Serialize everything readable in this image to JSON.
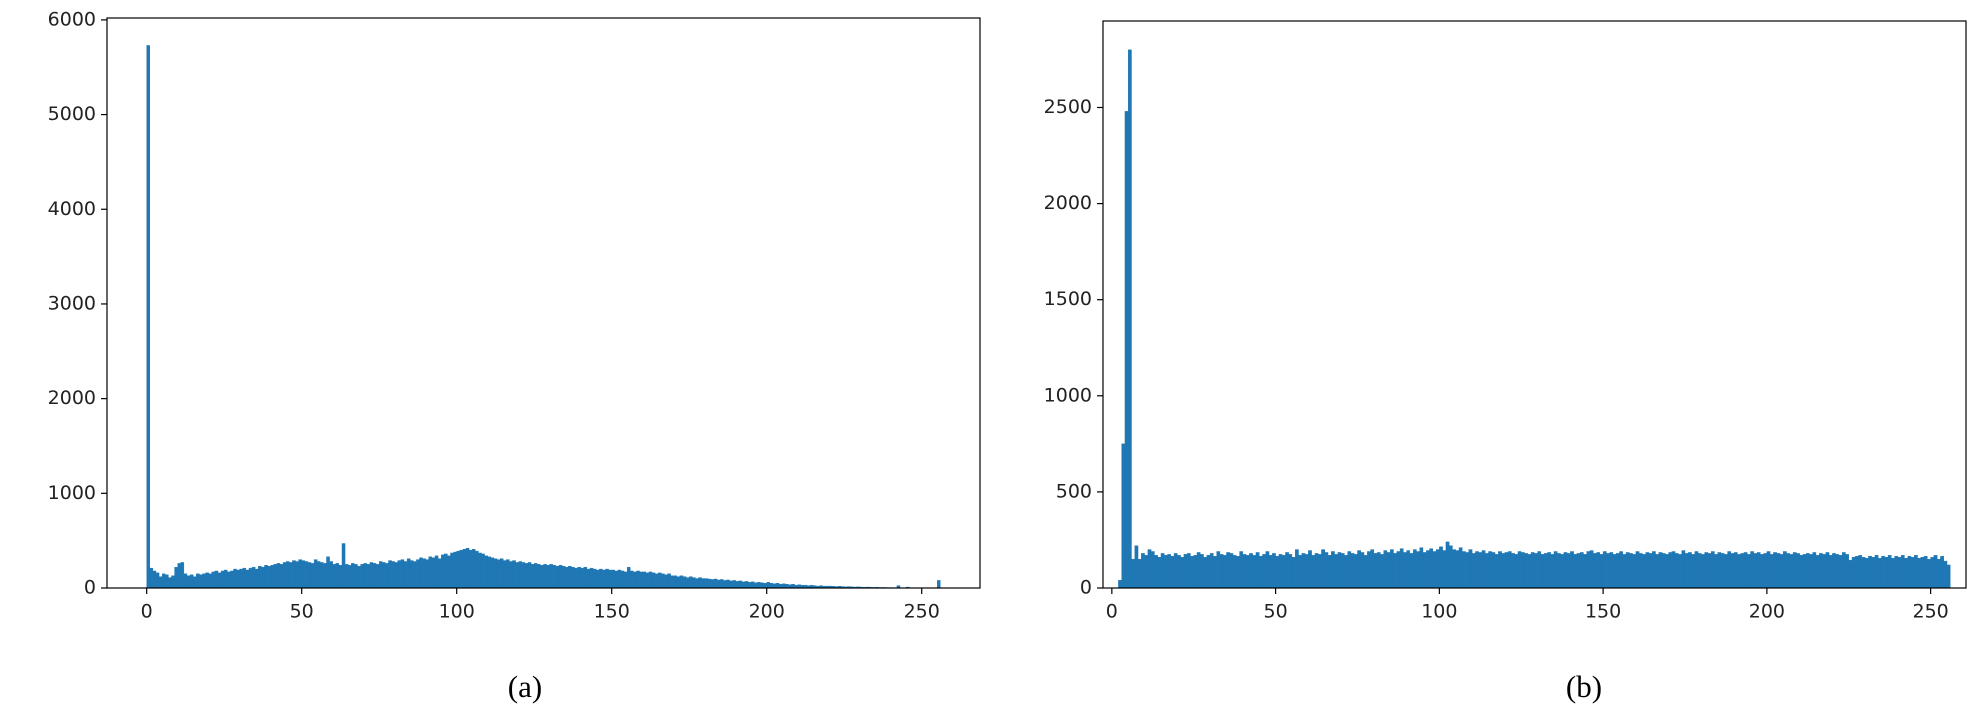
{
  "chart_data": [
    {
      "type": "histogram",
      "caption": "(a)",
      "color": "#1f77b4",
      "bins": [
        0,
        1,
        2,
        3,
        4,
        5,
        6,
        7,
        8,
        9,
        10,
        11,
        12,
        13,
        14,
        15,
        16,
        17,
        18,
        19,
        20,
        21,
        22,
        23,
        24,
        25,
        26,
        27,
        28,
        29,
        30,
        31,
        32,
        33,
        34,
        35,
        36,
        37,
        38,
        39,
        40,
        41,
        42,
        43,
        44,
        45,
        46,
        47,
        48,
        49,
        50,
        51,
        52,
        53,
        54,
        55,
        56,
        57,
        58,
        59,
        60,
        61,
        62,
        63,
        64,
        65,
        66,
        67,
        68,
        69,
        70,
        71,
        72,
        73,
        74,
        75,
        76,
        77,
        78,
        79,
        80,
        81,
        82,
        83,
        84,
        85,
        86,
        87,
        88,
        89,
        90,
        91,
        92,
        93,
        94,
        95,
        96,
        97,
        98,
        99,
        100,
        101,
        102,
        103,
        104,
        105,
        106,
        107,
        108,
        109,
        110,
        111,
        112,
        113,
        114,
        115,
        116,
        117,
        118,
        119,
        120,
        121,
        122,
        123,
        124,
        125,
        126,
        127,
        128,
        129,
        130,
        131,
        132,
        133,
        134,
        135,
        136,
        137,
        138,
        139,
        140,
        141,
        142,
        143,
        144,
        145,
        146,
        147,
        148,
        149,
        150,
        151,
        152,
        153,
        154,
        155,
        156,
        157,
        158,
        159,
        160,
        161,
        162,
        163,
        164,
        165,
        166,
        167,
        168,
        169,
        170,
        171,
        172,
        173,
        174,
        175,
        176,
        177,
        178,
        179,
        180,
        181,
        182,
        183,
        184,
        185,
        186,
        187,
        188,
        189,
        190,
        191,
        192,
        193,
        194,
        195,
        196,
        197,
        198,
        199,
        200,
        201,
        202,
        203,
        204,
        205,
        206,
        207,
        208,
        209,
        210,
        211,
        212,
        213,
        214,
        215,
        216,
        217,
        218,
        219,
        220,
        221,
        222,
        223,
        224,
        225,
        226,
        227,
        228,
        229,
        230,
        231,
        232,
        233,
        234,
        235,
        236,
        237,
        238,
        239,
        240,
        241,
        242,
        243,
        244,
        245,
        246,
        247,
        248,
        249,
        250,
        251,
        252,
        253,
        254,
        255,
        256
      ],
      "values": [
        5730,
        210,
        180,
        160,
        120,
        150,
        140,
        110,
        130,
        220,
        260,
        270,
        150,
        130,
        140,
        120,
        150,
        140,
        150,
        160,
        150,
        170,
        180,
        160,
        180,
        190,
        170,
        180,
        200,
        190,
        200,
        210,
        190,
        210,
        220,
        200,
        230,
        220,
        240,
        230,
        240,
        250,
        260,
        250,
        270,
        280,
        270,
        290,
        280,
        300,
        290,
        280,
        270,
        260,
        300,
        280,
        270,
        260,
        330,
        280,
        250,
        260,
        240,
        470,
        250,
        240,
        260,
        250,
        230,
        250,
        260,
        250,
        270,
        260,
        250,
        280,
        270,
        260,
        290,
        280,
        270,
        290,
        300,
        280,
        310,
        290,
        280,
        300,
        320,
        310,
        300,
        330,
        320,
        340,
        310,
        350,
        360,
        340,
        370,
        380,
        390,
        400,
        410,
        420,
        400,
        410,
        390,
        370,
        360,
        340,
        330,
        320,
        310,
        300,
        310,
        290,
        300,
        280,
        290,
        270,
        280,
        270,
        260,
        270,
        250,
        260,
        250,
        240,
        250,
        240,
        250,
        240,
        230,
        240,
        230,
        220,
        230,
        220,
        210,
        220,
        210,
        220,
        200,
        210,
        200,
        190,
        200,
        190,
        200,
        190,
        190,
        180,
        190,
        180,
        170,
        220,
        180,
        170,
        180,
        170,
        170,
        160,
        170,
        160,
        150,
        160,
        150,
        140,
        150,
        130,
        130,
        120,
        130,
        120,
        110,
        120,
        110,
        100,
        110,
        100,
        100,
        95,
        90,
        95,
        85,
        90,
        80,
        85,
        75,
        80,
        70,
        75,
        65,
        70,
        60,
        65,
        55,
        60,
        55,
        50,
        60,
        50,
        45,
        50,
        40,
        45,
        40,
        35,
        40,
        30,
        35,
        30,
        30,
        25,
        30,
        25,
        20,
        25,
        20,
        20,
        20,
        18,
        15,
        18,
        15,
        12,
        15,
        12,
        10,
        12,
        10,
        8,
        10,
        8,
        6,
        8,
        5,
        6,
        5,
        4,
        4,
        3,
        25,
        3,
        2,
        10,
        2,
        1,
        1,
        1,
        0,
        0,
        0,
        0,
        0,
        80
      ],
      "xlim": [
        -12.8,
        268.8
      ],
      "xticks": [
        0,
        50,
        100,
        150,
        200,
        250
      ],
      "ylim": [
        0,
        6020
      ],
      "yticks": [
        0,
        1000,
        2000,
        3000,
        4000,
        5000,
        6000
      ]
    },
    {
      "type": "histogram",
      "caption": "(b)",
      "color": "#1f77b4",
      "bins": [
        2,
        3,
        4,
        5,
        6,
        7,
        8,
        9,
        10,
        11,
        12,
        13,
        14,
        15,
        16,
        17,
        18,
        19,
        20,
        21,
        22,
        23,
        24,
        25,
        26,
        27,
        28,
        29,
        30,
        31,
        32,
        33,
        34,
        35,
        36,
        37,
        38,
        39,
        40,
        41,
        42,
        43,
        44,
        45,
        46,
        47,
        48,
        49,
        50,
        51,
        52,
        53,
        54,
        55,
        56,
        57,
        58,
        59,
        60,
        61,
        62,
        63,
        64,
        65,
        66,
        67,
        68,
        69,
        70,
        71,
        72,
        73,
        74,
        75,
        76,
        77,
        78,
        79,
        80,
        81,
        82,
        83,
        84,
        85,
        86,
        87,
        88,
        89,
        90,
        91,
        92,
        93,
        94,
        95,
        96,
        97,
        98,
        99,
        100,
        101,
        102,
        103,
        104,
        105,
        106,
        107,
        108,
        109,
        110,
        111,
        112,
        113,
        114,
        115,
        116,
        117,
        118,
        119,
        120,
        121,
        122,
        123,
        124,
        125,
        126,
        127,
        128,
        129,
        130,
        131,
        132,
        133,
        134,
        135,
        136,
        137,
        138,
        139,
        140,
        141,
        142,
        143,
        144,
        145,
        146,
        147,
        148,
        149,
        150,
        151,
        152,
        153,
        154,
        155,
        156,
        157,
        158,
        159,
        160,
        161,
        162,
        163,
        164,
        165,
        166,
        167,
        168,
        169,
        170,
        171,
        172,
        173,
        174,
        175,
        176,
        177,
        178,
        179,
        180,
        181,
        182,
        183,
        184,
        185,
        186,
        187,
        188,
        189,
        190,
        191,
        192,
        193,
        194,
        195,
        196,
        197,
        198,
        199,
        200,
        201,
        202,
        203,
        204,
        205,
        206,
        207,
        208,
        209,
        210,
        211,
        212,
        213,
        214,
        215,
        216,
        217,
        218,
        219,
        220,
        221,
        222,
        223,
        224,
        225,
        226,
        227,
        228,
        229,
        230,
        231,
        232,
        233,
        234,
        235,
        236,
        237,
        238,
        239,
        240,
        241,
        242,
        243,
        244,
        245,
        246,
        247,
        248,
        249,
        250,
        251,
        252,
        253,
        254,
        255,
        256
      ],
      "values": [
        40,
        750,
        2480,
        2800,
        150,
        220,
        150,
        180,
        170,
        200,
        190,
        170,
        160,
        180,
        170,
        175,
        165,
        180,
        170,
        160,
        175,
        180,
        165,
        170,
        185,
        175,
        160,
        170,
        180,
        165,
        190,
        175,
        170,
        185,
        180,
        170,
        165,
        190,
        175,
        170,
        180,
        170,
        185,
        165,
        175,
        190,
        170,
        180,
        165,
        175,
        170,
        185,
        175,
        160,
        200,
        170,
        180,
        175,
        195,
        170,
        180,
        175,
        200,
        185,
        170,
        190,
        175,
        185,
        180,
        170,
        190,
        180,
        175,
        195,
        185,
        170,
        190,
        200,
        180,
        185,
        175,
        195,
        185,
        200,
        180,
        190,
        205,
        185,
        195,
        180,
        200,
        190,
        210,
        185,
        195,
        205,
        190,
        200,
        215,
        195,
        240,
        220,
        200,
        195,
        210,
        190,
        185,
        200,
        180,
        190,
        185,
        195,
        180,
        190,
        185,
        175,
        190,
        180,
        185,
        190,
        180,
        175,
        190,
        185,
        180,
        175,
        185,
        180,
        190,
        175,
        180,
        185,
        175,
        190,
        180,
        175,
        185,
        180,
        190,
        175,
        180,
        185,
        175,
        190,
        195,
        180,
        185,
        175,
        190,
        180,
        185,
        175,
        180,
        190,
        175,
        185,
        180,
        175,
        190,
        180,
        175,
        185,
        180,
        190,
        175,
        185,
        180,
        175,
        185,
        190,
        180,
        175,
        195,
        180,
        185,
        175,
        190,
        180,
        175,
        185,
        180,
        190,
        175,
        185,
        180,
        175,
        190,
        180,
        185,
        175,
        180,
        185,
        175,
        190,
        180,
        185,
        175,
        180,
        190,
        175,
        185,
        180,
        175,
        190,
        180,
        175,
        185,
        180,
        170,
        175,
        180,
        175,
        185,
        170,
        180,
        175,
        185,
        170,
        180,
        175,
        170,
        185,
        175,
        145,
        160,
        165,
        170,
        160,
        155,
        165,
        160,
        170,
        155,
        165,
        160,
        170,
        155,
        165,
        160,
        170,
        155,
        165,
        160,
        170,
        155,
        160,
        165,
        150,
        160,
        170,
        150,
        165,
        140,
        120
      ],
      "xlim": [
        -2.7,
        260.8
      ],
      "xticks": [
        0,
        50,
        100,
        150,
        200,
        250
      ],
      "ylim": [
        0,
        2950
      ],
      "yticks": [
        0,
        500,
        1000,
        1500,
        2000,
        2500
      ]
    }
  ]
}
